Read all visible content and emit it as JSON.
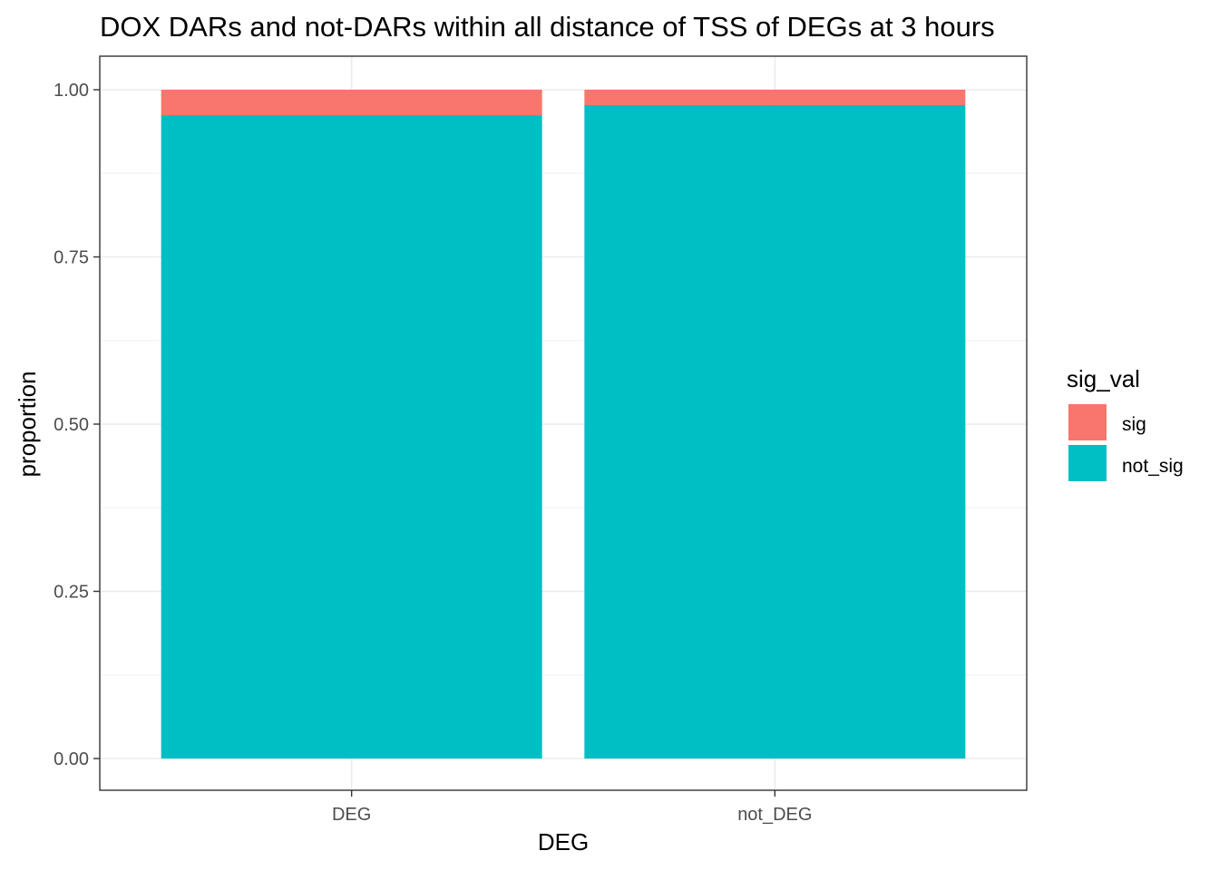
{
  "chart_data": {
    "type": "bar",
    "stacked": true,
    "title": "DOX DARs and not-DARs within all distance of TSS of DEGs at 3 hours",
    "xlabel": "DEG",
    "ylabel": "proportion",
    "categories": [
      "DEG",
      "not_DEG"
    ],
    "series": [
      {
        "name": "not_sig",
        "values": [
          0.962,
          0.977
        ],
        "color": "#00BFC4"
      },
      {
        "name": "sig",
        "values": [
          0.038,
          0.023
        ],
        "color": "#F8766D"
      }
    ],
    "ylim": [
      0,
      1
    ],
    "yticks": [
      0.0,
      0.25,
      0.5,
      0.75,
      1.0
    ],
    "ytick_labels": [
      "0.00",
      "0.25",
      "0.50",
      "0.75",
      "1.00"
    ],
    "grid": true,
    "legend": {
      "title": "sig_val",
      "placement": "right",
      "entries": [
        {
          "label": "sig",
          "color": "#F8766D"
        },
        {
          "label": "not_sig",
          "color": "#00BFC4"
        }
      ]
    }
  }
}
